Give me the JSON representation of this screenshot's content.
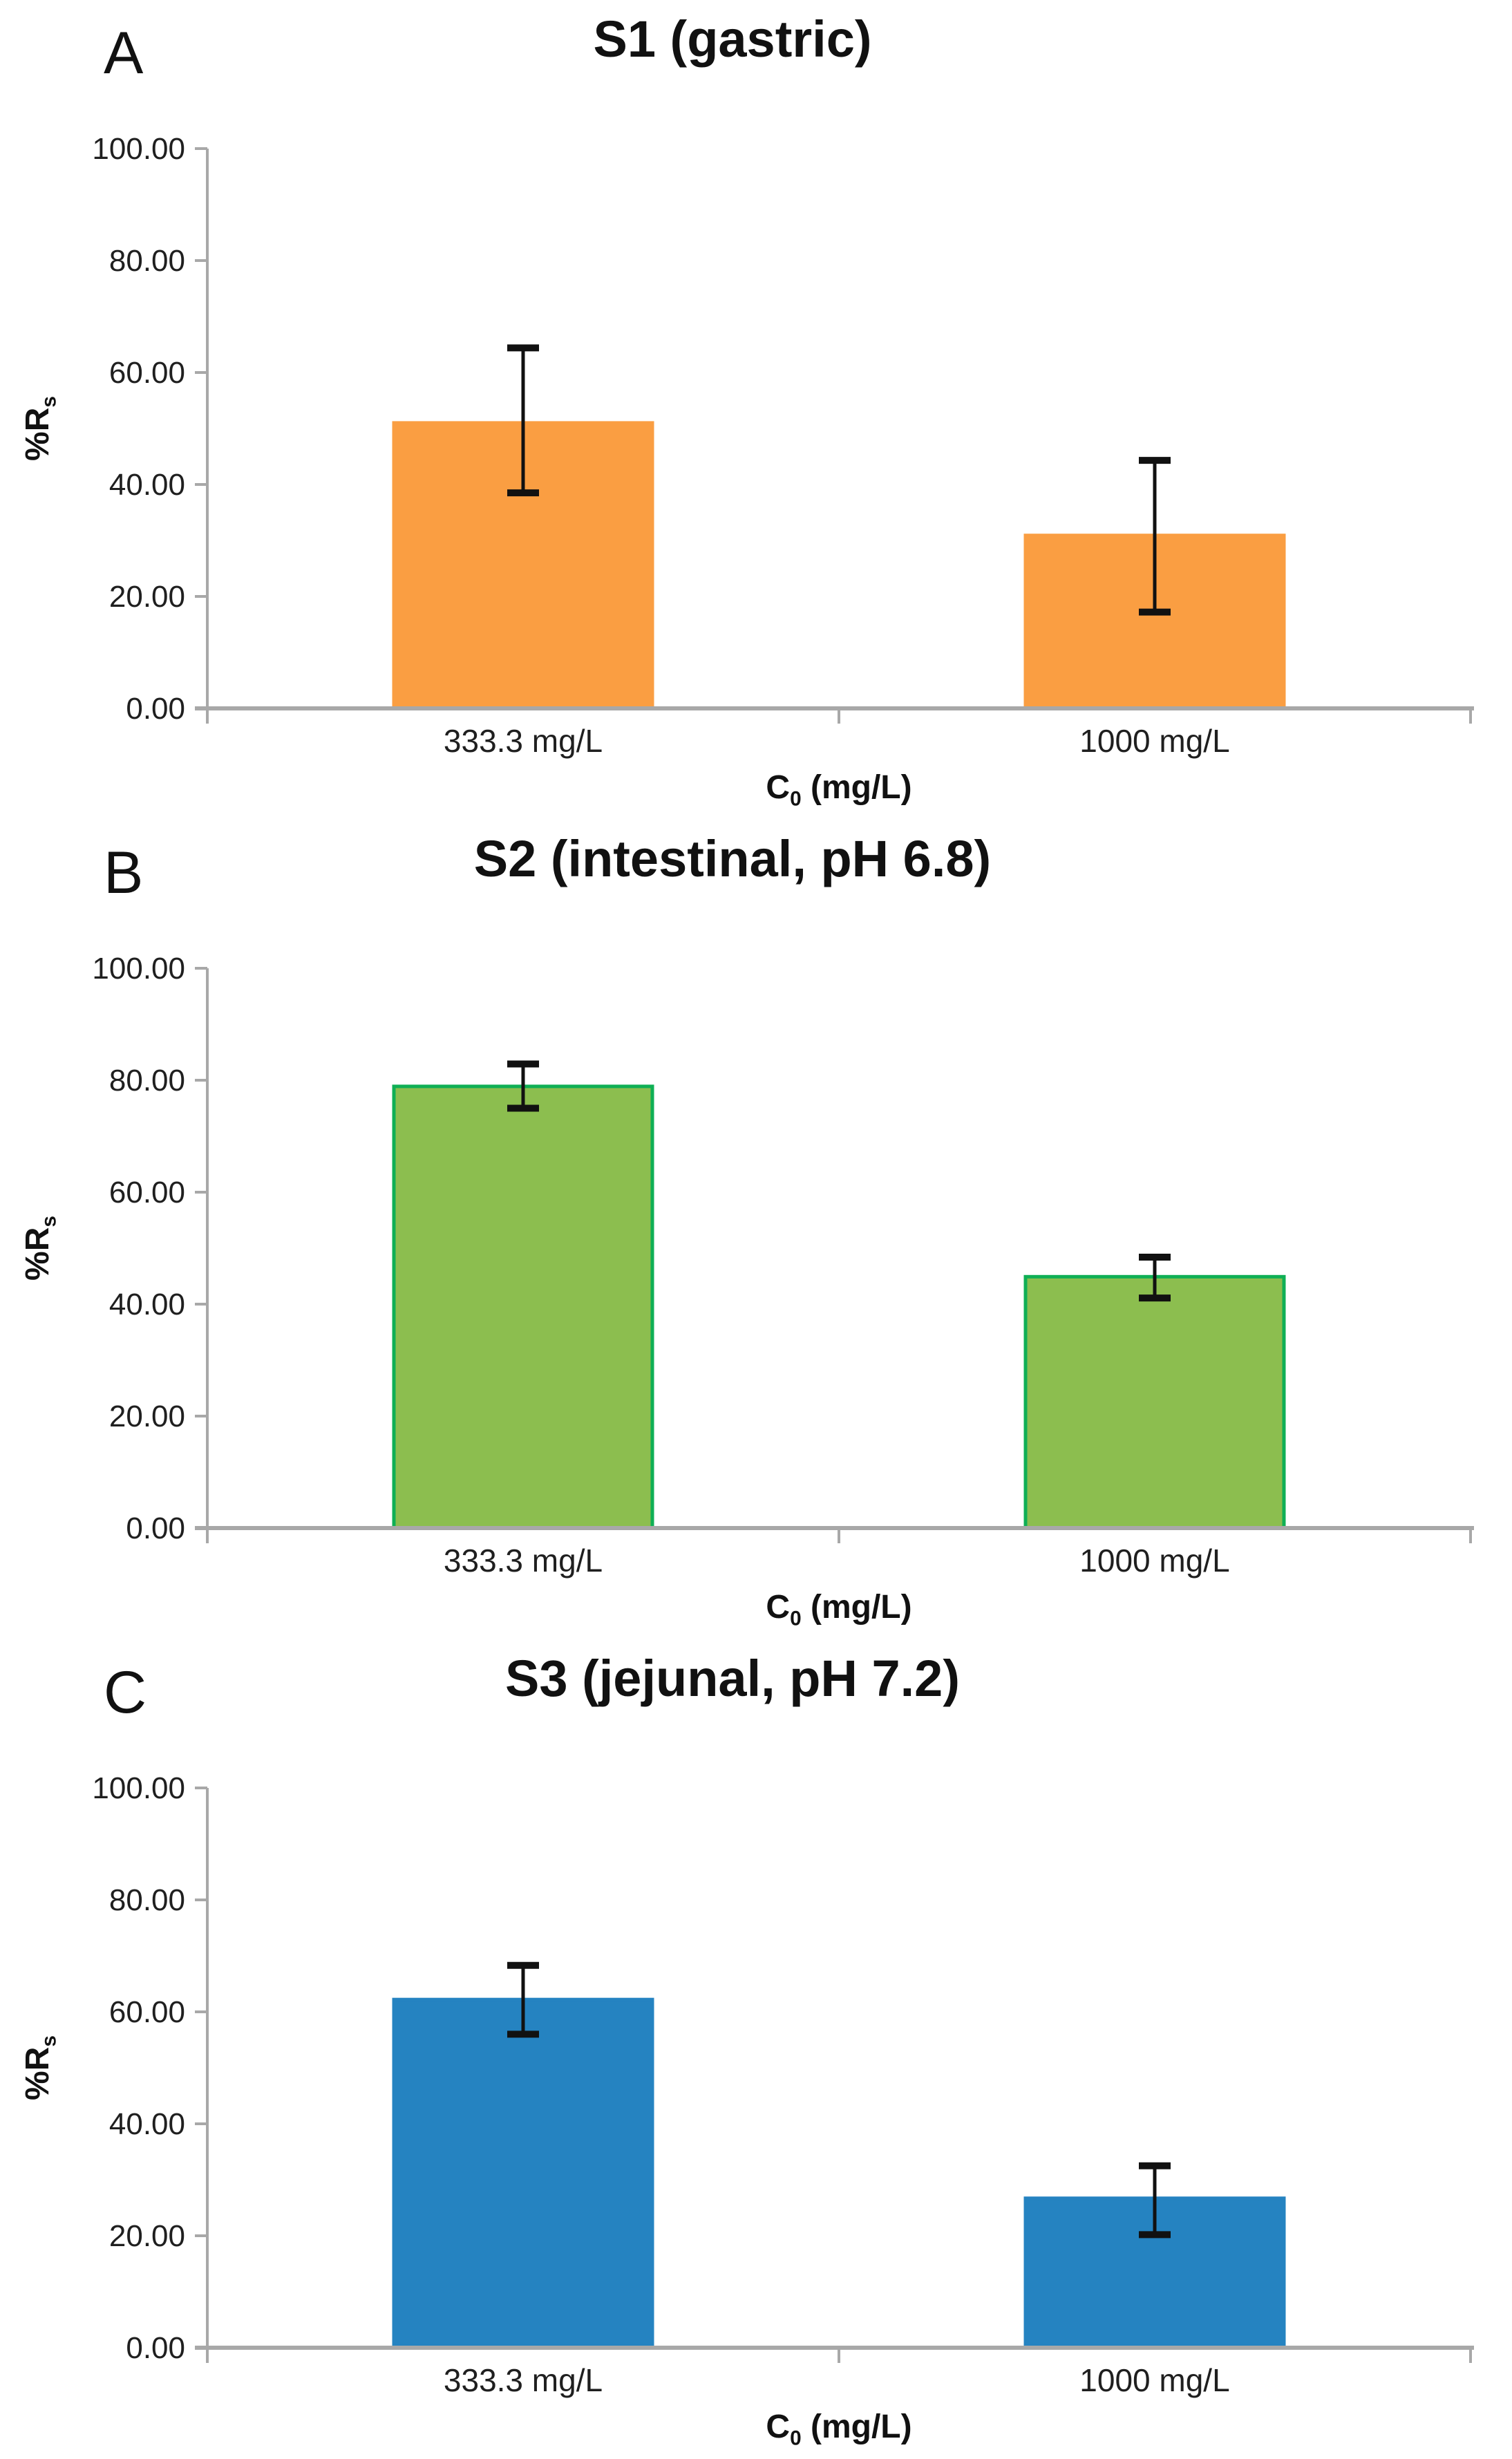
{
  "page": {
    "background": "#ffffff"
  },
  "chart_data": [
    {
      "type": "bar",
      "panel_letter": "A",
      "title": "S1 (gastric)",
      "categories": [
        "333.3 mg/L",
        "1000 mg/L"
      ],
      "values": [
        51.0,
        30.9
      ],
      "error_up": [
        13.4,
        13.4
      ],
      "error_down": [
        12.5,
        13.7
      ],
      "ylabel_main": "%R",
      "ylabel_sub": "s",
      "xlabel_main": "C",
      "xlabel_sub": "0",
      "xlabel_unit": " (mg/L)",
      "ylim": [
        0,
        100
      ],
      "ytick_step": 20,
      "ytick_labels": [
        "0.00",
        "20.00",
        "40.00",
        "60.00",
        "80.00",
        "100.00"
      ],
      "grid": false,
      "legend": "none",
      "bar_fill": "#FA9E42",
      "bar_stroke": "#FA9E42",
      "axis_color": "#A8A8A8",
      "error_color": "#111111"
    },
    {
      "type": "bar",
      "panel_letter": "B",
      "title": "S2 (intestinal, pH 6.8)",
      "categories": [
        "333.3 mg/L",
        "1000 mg/L"
      ],
      "values": [
        78.9,
        44.9
      ],
      "error_up": [
        4.0,
        3.5
      ],
      "error_down": [
        3.9,
        3.8
      ],
      "ylabel_main": "%R",
      "ylabel_sub": "s",
      "xlabel_main": "C",
      "xlabel_sub": "0",
      "xlabel_unit": " (mg/L)",
      "ylim": [
        0,
        100
      ],
      "ytick_step": 20,
      "ytick_labels": [
        "0.00",
        "20.00",
        "40.00",
        "60.00",
        "80.00",
        "100.00"
      ],
      "grid": false,
      "legend": "none",
      "bar_fill": "#8CBE4F",
      "bar_stroke": "#0FAF55",
      "axis_color": "#A8A8A8",
      "error_color": "#111111"
    },
    {
      "type": "bar",
      "panel_letter": "C",
      "title": "S3 (jejunal, pH 7.2)",
      "categories": [
        "333.3 mg/L",
        "1000 mg/L"
      ],
      "values": [
        62.2,
        26.7
      ],
      "error_up": [
        6.1,
        5.8
      ],
      "error_down": [
        6.2,
        6.5
      ],
      "ylabel_main": "%R",
      "ylabel_sub": "s",
      "xlabel_main": "C",
      "xlabel_sub": "0",
      "xlabel_unit": " (mg/L)",
      "ylim": [
        0,
        100
      ],
      "ytick_step": 20,
      "ytick_labels": [
        "0.00",
        "20.00",
        "40.00",
        "60.00",
        "80.00",
        "100.00"
      ],
      "grid": false,
      "legend": "none",
      "bar_fill": "#2583C1",
      "bar_stroke": "#2583C1",
      "axis_color": "#A8A8A8",
      "error_color": "#111111"
    }
  ]
}
